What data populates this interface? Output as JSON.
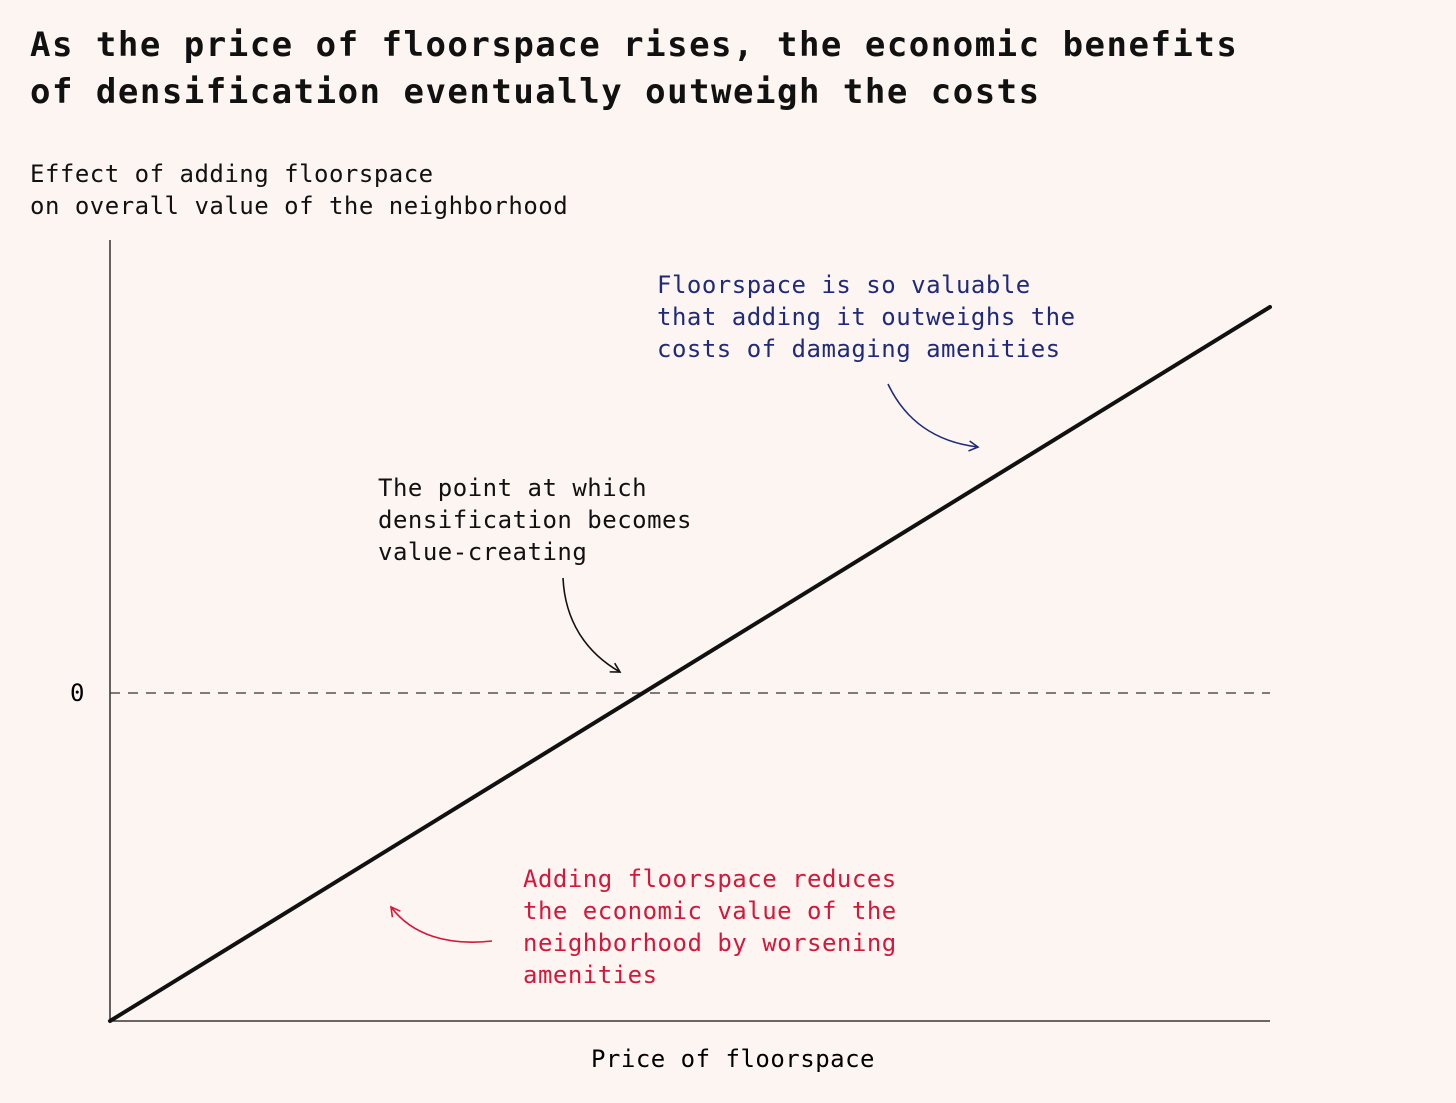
{
  "chart_data": {
    "type": "line",
    "title": [
      "As the price of floorspace rises, the economic benefits",
      "of densification eventually outweigh the costs"
    ],
    "ylabel": [
      "Effect of adding floorspace",
      "on overall value of the neighborhood"
    ],
    "xlabel": "Price of floorspace",
    "y_ticks": [
      "0"
    ],
    "reference_line": {
      "label": "0",
      "style": "dashed"
    },
    "series": [
      {
        "color": "#111111"
      }
    ],
    "annotations": [
      {
        "id": "amenity-cost",
        "lines": [
          "Floorspace is so valuable",
          "that adding it outweighs the",
          "costs of damaging amenities"
        ],
        "color": "#1f2a7a"
      },
      {
        "id": "breakeven",
        "lines": [
          "The point at which",
          "densification becomes",
          "value-creating"
        ],
        "color": "#111111"
      },
      {
        "id": "value-loss",
        "lines": [
          "Adding floorspace reduces",
          "the economic value of the",
          "neighborhood by worsening",
          "amenities"
        ],
        "color": "#d4173a"
      }
    ],
    "grid": false,
    "legend": "none"
  }
}
